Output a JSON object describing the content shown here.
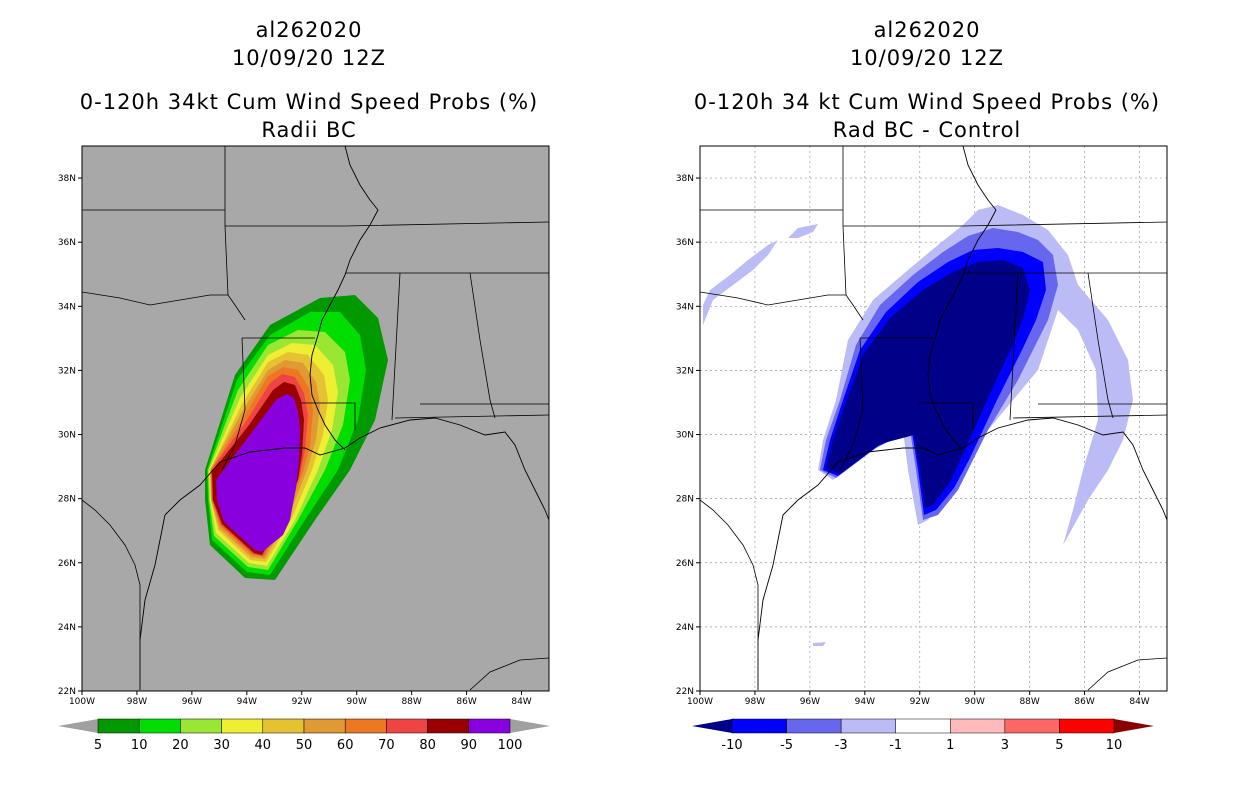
{
  "left_panel": {
    "storm_id": "al262020",
    "datetime": "10/09/20 12Z",
    "product": "0-120h 34kt Cum Wind Speed Probs (%)",
    "subtitle": "Radii BC"
  },
  "right_panel": {
    "storm_id": "al262020",
    "datetime": "10/09/20 12Z",
    "product": "0-120h 34 kt Cum Wind Speed Probs (%)",
    "subtitle": "Rad BC - Control"
  },
  "axes": {
    "lat_labels": [
      "38N",
      "36N",
      "34N",
      "32N",
      "30N",
      "28N",
      "26N",
      "24N",
      "22N"
    ],
    "lon_labels": [
      "100W",
      "98W",
      "96W",
      "94W",
      "92W",
      "90W",
      "88W",
      "86W",
      "84W"
    ]
  },
  "left_colorbar": {
    "labels": [
      "5",
      "10",
      "20",
      "30",
      "40",
      "50",
      "60",
      "70",
      "80",
      "90",
      "100"
    ],
    "colors": [
      "#009900",
      "#00dd00",
      "#99e633",
      "#eeee33",
      "#e6c233",
      "#e09933",
      "#ee7722",
      "#ee4444",
      "#990000",
      "#8800dd"
    ],
    "end_color": "#a0a0a0"
  },
  "right_colorbar": {
    "labels": [
      "-10",
      "-5",
      "-3",
      "-1",
      "1",
      "3",
      "5",
      "10"
    ],
    "colors": [
      "#0000ff",
      "#6666ee",
      "#bbbbf5",
      "#ffffff",
      "#ffbbbb",
      "#ff6666",
      "#ff0000"
    ],
    "low_end_color": "#000088",
    "high_end_color": "#880000"
  }
}
